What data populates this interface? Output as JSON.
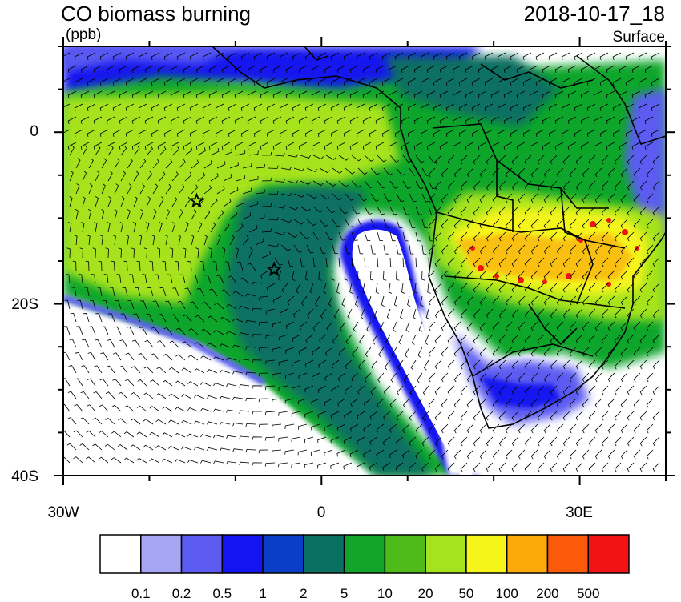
{
  "header": {
    "title": "CO biomass burning",
    "datetime": "2018-10-17_18",
    "units": "(ppb)",
    "level": "Surface"
  },
  "axes": {
    "y_ticks": [
      {
        "label": "0",
        "lat": 0
      },
      {
        "label": "20S",
        "lat": -20
      },
      {
        "label": "40S",
        "lat": -40
      }
    ],
    "x_ticks": [
      {
        "label": "30W",
        "lon": -30
      },
      {
        "label": "0",
        "lon": 0
      },
      {
        "label": "30E",
        "lon": 30
      }
    ],
    "lon_range": [
      -30,
      40
    ],
    "lat_range": [
      -40,
      10
    ]
  },
  "colorbar": {
    "labels": [
      "0.1",
      "0.2",
      "0.5",
      "1",
      "2",
      "5",
      "10",
      "20",
      "50",
      "100",
      "200",
      "500"
    ],
    "colors": [
      "#ffffff",
      "#a6a6f5",
      "#5c5cf2",
      "#1414f0",
      "#0b3ec8",
      "#0a7062",
      "#11a629",
      "#4fbb1b",
      "#a6e31f",
      "#f5f51a",
      "#fbaa0a",
      "#fa5a0a",
      "#f21414"
    ]
  },
  "markers": [
    {
      "name": "star-marker-1",
      "lon": -14.5,
      "lat": -8
    },
    {
      "name": "star-marker-2",
      "lon": -5.5,
      "lat": -16
    }
  ]
}
